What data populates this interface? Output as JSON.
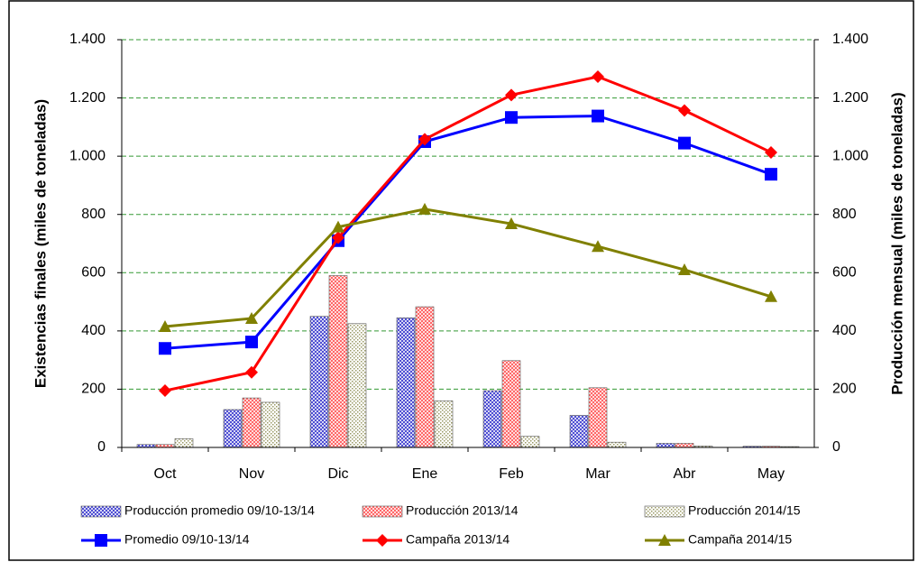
{
  "chart_data": {
    "type": "bar+line",
    "categories": [
      "Oct",
      "Nov",
      "Dic",
      "Ene",
      "Feb",
      "Mar",
      "Abr",
      "May"
    ],
    "y_label": "Existencias finales (miles de toneladas)",
    "y2_label": "Producción mensual (miles de toneladas)",
    "ylim": [
      0,
      1400
    ],
    "yticks": [
      0,
      200,
      400,
      600,
      800,
      {
        "value": 1000,
        "label": "1.000"
      },
      {
        "value": 1200,
        "label": "1.200"
      },
      {
        "value": 1400,
        "label": "1.400"
      }
    ],
    "y2lim": [
      0,
      1400
    ],
    "y2ticks": [
      0,
      200,
      400,
      600,
      800,
      {
        "value": 1000,
        "label": "1.000"
      },
      {
        "value": 1200,
        "label": "1.200"
      },
      {
        "value": 1400,
        "label": "1.400"
      }
    ],
    "grid": true,
    "series": [
      {
        "name": "Producción promedio 09/10-13/14",
        "type": "bar",
        "axis": "y2",
        "color": "#3333cc",
        "pattern": "crosshatch",
        "values": [
          10,
          130,
          450,
          445,
          195,
          110,
          14,
          4
        ]
      },
      {
        "name": "Producción 2013/14",
        "type": "bar",
        "axis": "y2",
        "color": "#ff5050",
        "pattern": "crosshatch",
        "values": [
          10,
          170,
          590,
          483,
          298,
          205,
          14,
          4
        ]
      },
      {
        "name": "Producción 2014/15",
        "type": "bar",
        "axis": "y2",
        "color": "#999966",
        "pattern": "dots",
        "values": [
          30,
          155,
          425,
          160,
          38,
          18,
          5,
          3
        ]
      },
      {
        "name": "Promedio 09/10-13/14",
        "type": "line",
        "color": "#0000ff",
        "marker": "square",
        "values": [
          340,
          362,
          710,
          1050,
          1133,
          1138,
          1045,
          938
        ]
      },
      {
        "name": "Campaña 2013/14",
        "type": "line",
        "color": "#ff0000",
        "marker": "diamond",
        "values": [
          195,
          258,
          720,
          1058,
          1210,
          1273,
          1157,
          1013
        ]
      },
      {
        "name": "Campaña 2014/15",
        "type": "line",
        "color": "#808000",
        "marker": "triangle",
        "values": [
          415,
          443,
          757,
          818,
          768,
          690,
          610,
          518
        ]
      }
    ]
  }
}
